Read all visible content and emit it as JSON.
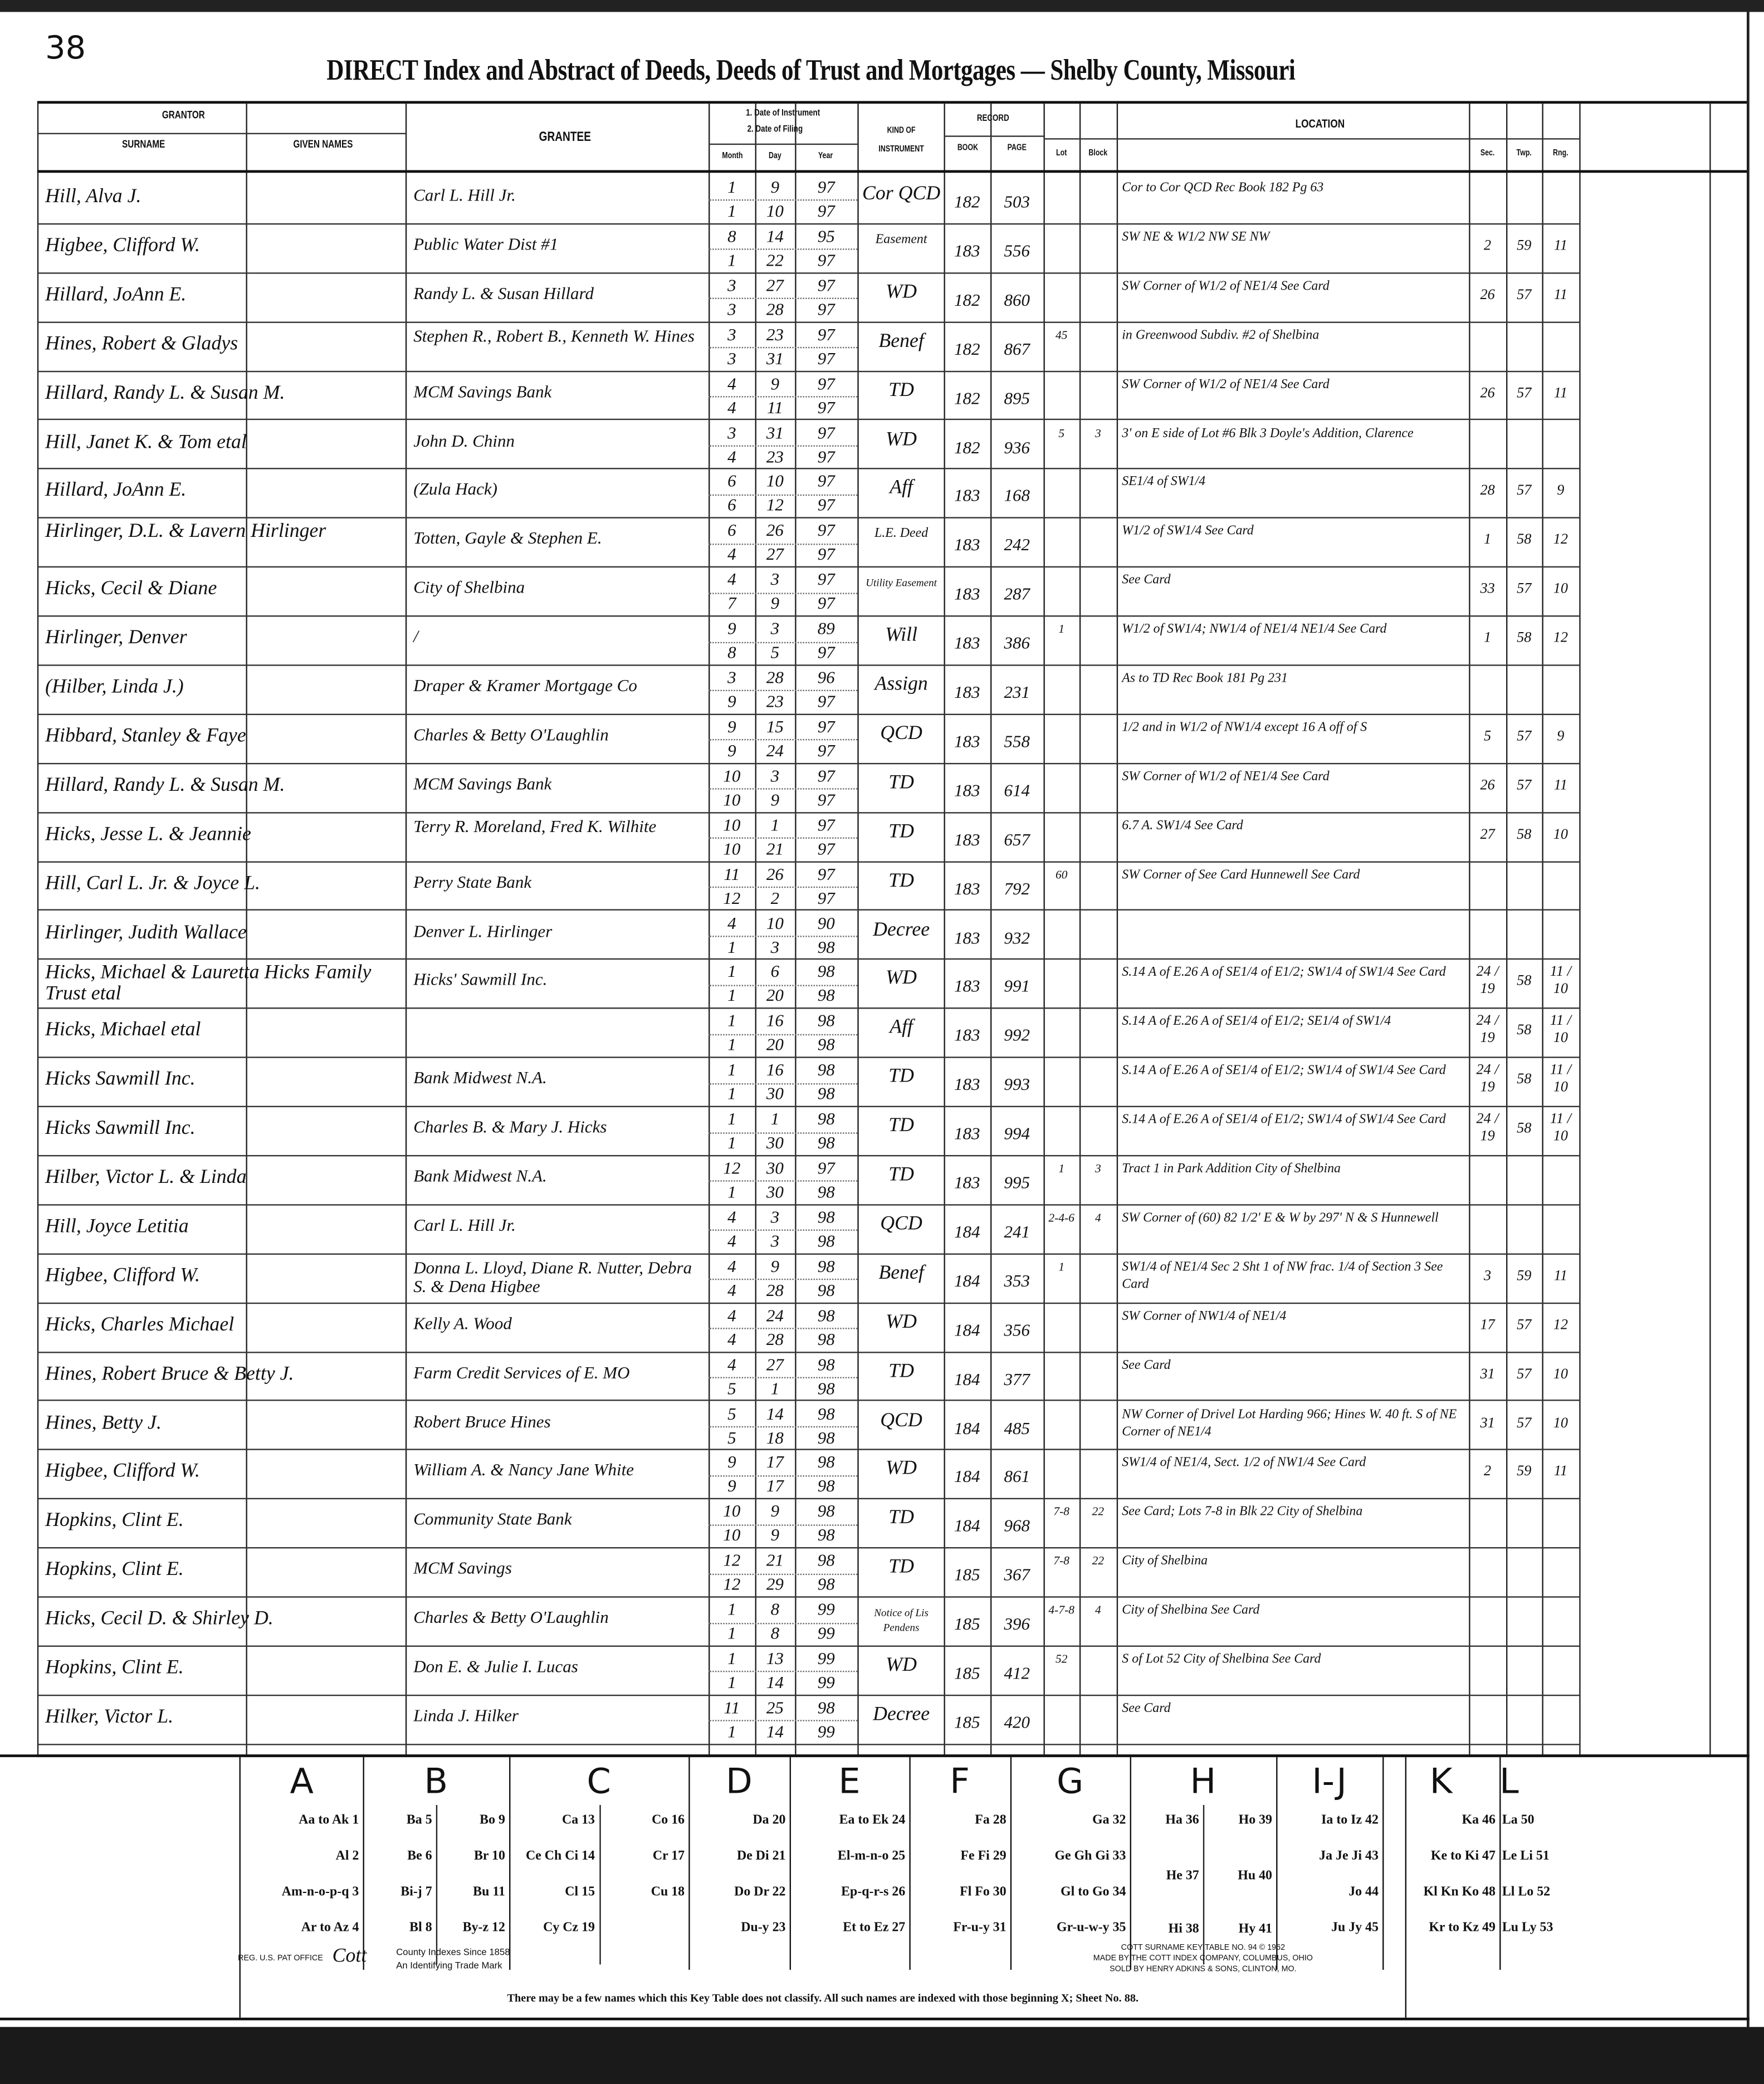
{
  "page_number": "38",
  "title": "DIRECT Index and Abstract of Deeds, Deeds of Trust and Mortgages — Shelby County, Missouri",
  "headers": {
    "grantor": "GRANTOR",
    "surname": "SURNAME",
    "given_names": "GIVEN NAMES",
    "grantee": "GRANTEE",
    "date_1": "1. Date of Instrument",
    "date_2": "2. Date of Filing",
    "month": "Month",
    "day": "Day",
    "year": "Year",
    "kind": "KIND OF INSTRUMENT",
    "record": "RECORD",
    "book": "BOOK",
    "page": "PAGE",
    "location": "LOCATION",
    "lot": "Lot",
    "block": "Block",
    "sec": "Sec.",
    "twp": "Twp.",
    "rng": "Rng."
  },
  "entries": [
    {
      "grantor": "Hill, Alva J.",
      "grantee": "Carl L. Hill Jr.",
      "d1": [
        "1",
        "9",
        "97"
      ],
      "d2": [
        "1",
        "10",
        "97"
      ],
      "kind": "Cor QCD",
      "book": "182",
      "page": "503",
      "lot": "",
      "block": "",
      "loc": "Cor to Cor QCD Rec Book 182 Pg 63",
      "sec": "",
      "twp": "",
      "rng": ""
    },
    {
      "grantor": "Higbee, Clifford W.",
      "grantee": "Public Water Dist #1",
      "d1": [
        "8",
        "14",
        "95"
      ],
      "d2": [
        "1",
        "22",
        "97"
      ],
      "kind": "Easement",
      "book": "183",
      "page": "556",
      "lot": "",
      "block": "",
      "loc": "SW NE & W1/2 NW SE NW",
      "sec": "2",
      "twp": "59",
      "rng": "11"
    },
    {
      "grantor": "Hillard, JoAnn E.",
      "grantee": "Randy L. & Susan Hillard",
      "d1": [
        "3",
        "27",
        "97"
      ],
      "d2": [
        "3",
        "28",
        "97"
      ],
      "kind": "WD",
      "book": "182",
      "page": "860",
      "lot": "",
      "block": "",
      "loc": "SW Corner of W1/2 of NE1/4 See Card",
      "sec": "26",
      "twp": "57",
      "rng": "11"
    },
    {
      "grantor": "Hines, Robert & Gladys",
      "grantee": "Stephen R., Robert B., Kenneth W. Hines",
      "d1": [
        "3",
        "23",
        "97"
      ],
      "d2": [
        "3",
        "31",
        "97"
      ],
      "kind": "Benef",
      "book": "182",
      "page": "867",
      "lot": "45",
      "block": "",
      "loc": "in Greenwood Subdiv. #2 of Shelbina",
      "sec": "",
      "twp": "",
      "rng": ""
    },
    {
      "grantor": "Hillard, Randy L. & Susan M.",
      "grantee": "MCM Savings Bank",
      "d1": [
        "4",
        "9",
        "97"
      ],
      "d2": [
        "4",
        "11",
        "97"
      ],
      "kind": "TD",
      "book": "182",
      "page": "895",
      "lot": "",
      "block": "",
      "loc": "SW Corner of W1/2 of NE1/4 See Card",
      "sec": "26",
      "twp": "57",
      "rng": "11"
    },
    {
      "grantor": "Hill, Janet K. & Tom etal",
      "grantee": "John D. Chinn",
      "d1": [
        "3",
        "31",
        "97"
      ],
      "d2": [
        "4",
        "23",
        "97"
      ],
      "kind": "WD",
      "book": "182",
      "page": "936",
      "lot": "5",
      "block": "3",
      "loc": "3' on E side of Lot #6 Blk 3 Doyle's Addition, Clarence",
      "sec": "",
      "twp": "",
      "rng": ""
    },
    {
      "grantor": "Hillard, JoAnn E.",
      "grantee": "(Zula Hack)",
      "d1": [
        "6",
        "10",
        "97"
      ],
      "d2": [
        "6",
        "12",
        "97"
      ],
      "kind": "Aff",
      "book": "183",
      "page": "168",
      "lot": "",
      "block": "",
      "loc": "SE1/4 of SW1/4",
      "sec": "28",
      "twp": "57",
      "rng": "9"
    },
    {
      "grantor": "Hirlinger, D.L. & Lavern Hirlinger",
      "grantee": "Totten, Gayle & Stephen E.",
      "d1": [
        "6",
        "26",
        "97"
      ],
      "d2": [
        "4",
        "27",
        "97"
      ],
      "kind": "L.E. Deed",
      "book": "183",
      "page": "242",
      "lot": "",
      "block": "",
      "loc": "W1/2 of SW1/4 See Card",
      "sec": "1",
      "twp": "58",
      "rng": "12"
    },
    {
      "grantor": "Hicks, Cecil & Diane",
      "grantee": "City of Shelbina",
      "d1": [
        "4",
        "3",
        "97"
      ],
      "d2": [
        "7",
        "9",
        "97"
      ],
      "kind": "Utility Easement",
      "book": "183",
      "page": "287",
      "lot": "",
      "block": "",
      "loc": "See Card",
      "sec": "33",
      "twp": "57",
      "rng": "10"
    },
    {
      "grantor": "Hirlinger, Denver",
      "grantee": "/",
      "d1": [
        "9",
        "3",
        "89"
      ],
      "d2": [
        "8",
        "5",
        "97"
      ],
      "kind": "Will",
      "book": "183",
      "page": "386",
      "lot": "1",
      "block": "",
      "loc": "W1/2 of SW1/4; NW1/4 of NE1/4 NE1/4 See Card",
      "sec": "1",
      "twp": "58",
      "rng": "12"
    },
    {
      "grantor": "(Hilber, Linda J.)",
      "grantee": "Draper & Kramer Mortgage Co",
      "d1": [
        "3",
        "28",
        "96"
      ],
      "d2": [
        "9",
        "23",
        "97"
      ],
      "kind": "Assign",
      "book": "183",
      "page": "231",
      "lot": "",
      "block": "",
      "loc": "As to TD Rec Book 181 Pg 231",
      "sec": "",
      "twp": "",
      "rng": ""
    },
    {
      "grantor": "Hibbard, Stanley & Faye",
      "grantee": "Charles & Betty O'Laughlin",
      "d1": [
        "9",
        "15",
        "97"
      ],
      "d2": [
        "9",
        "24",
        "97"
      ],
      "kind": "QCD",
      "book": "183",
      "page": "558",
      "lot": "",
      "block": "",
      "loc": "1/2 and in W1/2 of NW1/4 except 16 A off of S",
      "sec": "5",
      "twp": "57",
      "rng": "9"
    },
    {
      "grantor": "Hillard, Randy L. & Susan M.",
      "grantee": "MCM Savings Bank",
      "d1": [
        "10",
        "3",
        "97"
      ],
      "d2": [
        "10",
        "9",
        "97"
      ],
      "kind": "TD",
      "book": "183",
      "page": "614",
      "lot": "",
      "block": "",
      "loc": "SW Corner of W1/2 of NE1/4 See Card",
      "sec": "26",
      "twp": "57",
      "rng": "11"
    },
    {
      "grantor": "Hicks, Jesse L. & Jeannie",
      "grantee": "Terry R. Moreland, Fred K. Wilhite",
      "d1": [
        "10",
        "1",
        "97"
      ],
      "d2": [
        "10",
        "21",
        "97"
      ],
      "kind": "TD",
      "book": "183",
      "page": "657",
      "lot": "",
      "block": "",
      "loc": "6.7 A. SW1/4 See Card",
      "sec": "27",
      "twp": "58",
      "rng": "10"
    },
    {
      "grantor": "Hill, Carl L. Jr. & Joyce L.",
      "grantee": "Perry State Bank",
      "d1": [
        "11",
        "26",
        "97"
      ],
      "d2": [
        "12",
        "2",
        "97"
      ],
      "kind": "TD",
      "book": "183",
      "page": "792",
      "lot": "60",
      "block": "",
      "loc": "SW Corner of See Card Hunnewell See Card",
      "sec": "",
      "twp": "",
      "rng": ""
    },
    {
      "grantor": "Hirlinger, Judith Wallace",
      "grantee": "Denver L. Hirlinger",
      "d1": [
        "4",
        "10",
        "90"
      ],
      "d2": [
        "1",
        "3",
        "98"
      ],
      "kind": "Decree",
      "book": "183",
      "page": "932",
      "lot": "",
      "block": "",
      "loc": "",
      "sec": "",
      "twp": "",
      "rng": ""
    },
    {
      "grantor": "Hicks, Michael & Lauretta Hicks Family Trust etal",
      "grantee": "Hicks' Sawmill Inc.",
      "d1": [
        "1",
        "6",
        "98"
      ],
      "d2": [
        "1",
        "20",
        "98"
      ],
      "kind": "WD",
      "book": "183",
      "page": "991",
      "lot": "",
      "block": "",
      "loc": "S.14 A of E.26 A of SE1/4 of E1/2; SW1/4 of SW1/4 See Card",
      "sec": "24 / 19",
      "twp": "58",
      "rng": "11 / 10"
    },
    {
      "grantor": "Hicks, Michael etal",
      "grantee": "",
      "d1": [
        "1",
        "16",
        "98"
      ],
      "d2": [
        "1",
        "20",
        "98"
      ],
      "kind": "Aff",
      "book": "183",
      "page": "992",
      "lot": "",
      "block": "",
      "loc": "S.14 A of E.26 A of SE1/4 of E1/2; SE1/4 of SW1/4",
      "sec": "24 / 19",
      "twp": "58",
      "rng": "11 / 10"
    },
    {
      "grantor": "Hicks Sawmill Inc.",
      "grantee": "Bank Midwest N.A.",
      "d1": [
        "1",
        "16",
        "98"
      ],
      "d2": [
        "1",
        "30",
        "98"
      ],
      "kind": "TD",
      "book": "183",
      "page": "993",
      "lot": "",
      "block": "",
      "loc": "S.14 A of E.26 A of SE1/4 of E1/2; SW1/4 of SW1/4 See Card",
      "sec": "24 / 19",
      "twp": "58",
      "rng": "11 / 10"
    },
    {
      "grantor": "Hicks Sawmill Inc.",
      "grantee": "Charles B. & Mary J. Hicks",
      "d1": [
        "1",
        "1",
        "98"
      ],
      "d2": [
        "1",
        "30",
        "98"
      ],
      "kind": "TD",
      "book": "183",
      "page": "994",
      "lot": "",
      "block": "",
      "loc": "S.14 A of E.26 A of SE1/4 of E1/2; SW1/4 of SW1/4 See Card",
      "sec": "24 / 19",
      "twp": "58",
      "rng": "11 / 10"
    },
    {
      "grantor": "Hilber, Victor L. & Linda",
      "grantee": "Bank Midwest N.A.",
      "d1": [
        "12",
        "30",
        "97"
      ],
      "d2": [
        "1",
        "30",
        "98"
      ],
      "kind": "TD",
      "book": "183",
      "page": "995",
      "lot": "1",
      "block": "3",
      "loc": "Tract 1 in Park Addition City of Shelbina",
      "sec": "",
      "twp": "",
      "rng": ""
    },
    {
      "grantor": "Hill, Joyce Letitia",
      "grantee": "Carl L. Hill Jr.",
      "d1": [
        "4",
        "3",
        "98"
      ],
      "d2": [
        "4",
        "3",
        "98"
      ],
      "kind": "QCD",
      "book": "184",
      "page": "241",
      "lot": "2-4-6",
      "block": "4",
      "loc": "SW Corner of (60) 82 1/2' E & W by 297' N & S Hunnewell",
      "sec": "",
      "twp": "",
      "rng": ""
    },
    {
      "grantor": "Higbee, Clifford W.",
      "grantee": "Donna L. Lloyd, Diane R. Nutter, Debra S. & Dena Higbee",
      "d1": [
        "4",
        "9",
        "98"
      ],
      "d2": [
        "4",
        "28",
        "98"
      ],
      "kind": "Benef",
      "book": "184",
      "page": "353",
      "lot": "1",
      "block": "",
      "loc": "SW1/4 of NE1/4 Sec 2 Sht 1 of NW frac. 1/4 of Section 3 See Card",
      "sec": "3",
      "twp": "59",
      "rng": "11"
    },
    {
      "grantor": "Hicks, Charles Michael",
      "grantee": "Kelly A. Wood",
      "d1": [
        "4",
        "24",
        "98"
      ],
      "d2": [
        "4",
        "28",
        "98"
      ],
      "kind": "WD",
      "book": "184",
      "page": "356",
      "lot": "",
      "block": "",
      "loc": "SW Corner of NW1/4 of NE1/4",
      "sec": "17",
      "twp": "57",
      "rng": "12"
    },
    {
      "grantor": "Hines, Robert Bruce & Betty J.",
      "grantee": "Farm Credit Services of E. MO",
      "d1": [
        "4",
        "27",
        "98"
      ],
      "d2": [
        "5",
        "1",
        "98"
      ],
      "kind": "TD",
      "book": "184",
      "page": "377",
      "lot": "",
      "block": "",
      "loc": "See Card",
      "sec": "31",
      "twp": "57",
      "rng": "10"
    },
    {
      "grantor": "Hines, Betty J.",
      "grantee": "Robert Bruce Hines",
      "d1": [
        "5",
        "14",
        "98"
      ],
      "d2": [
        "5",
        "18",
        "98"
      ],
      "kind": "QCD",
      "book": "184",
      "page": "485",
      "lot": "",
      "block": "",
      "loc": "NW Corner of Drivel Lot Harding 966; Hines W. 40 ft. S of NE Corner of NE1/4",
      "sec": "31",
      "twp": "57",
      "rng": "10"
    },
    {
      "grantor": "Higbee, Clifford W.",
      "grantee": "William A. & Nancy Jane White",
      "d1": [
        "9",
        "17",
        "98"
      ],
      "d2": [
        "9",
        "17",
        "98"
      ],
      "kind": "WD",
      "book": "184",
      "page": "861",
      "lot": "",
      "block": "",
      "loc": "SW1/4 of NE1/4, Sect. 1/2 of NW1/4 See Card",
      "sec": "2",
      "twp": "59",
      "rng": "11"
    },
    {
      "grantor": "Hopkins, Clint E.",
      "grantee": "Community State Bank",
      "d1": [
        "10",
        "9",
        "98"
      ],
      "d2": [
        "10",
        "9",
        "98"
      ],
      "kind": "TD",
      "book": "184",
      "page": "968",
      "lot": "7-8",
      "block": "22",
      "loc": "See Card; Lots 7-8 in Blk 22 City of Shelbina",
      "sec": "",
      "twp": "",
      "rng": ""
    },
    {
      "grantor": "Hopkins, Clint E.",
      "grantee": "MCM Savings",
      "d1": [
        "12",
        "21",
        "98"
      ],
      "d2": [
        "12",
        "29",
        "98"
      ],
      "kind": "TD",
      "book": "185",
      "page": "367",
      "lot": "7-8",
      "block": "22",
      "loc": "City of Shelbina",
      "sec": "",
      "twp": "",
      "rng": ""
    },
    {
      "grantor": "Hicks, Cecil D. & Shirley D.",
      "grantee": "Charles & Betty O'Laughlin",
      "d1": [
        "1",
        "8",
        "99"
      ],
      "d2": [
        "1",
        "8",
        "99"
      ],
      "kind": "Notice of Lis Pendens",
      "book": "185",
      "page": "396",
      "lot": "4-7-8",
      "block": "4",
      "loc": "City of Shelbina See Card",
      "sec": "",
      "twp": "",
      "rng": ""
    },
    {
      "grantor": "Hopkins, Clint E.",
      "grantee": "Don E. & Julie I. Lucas",
      "d1": [
        "1",
        "13",
        "99"
      ],
      "d2": [
        "1",
        "14",
        "99"
      ],
      "kind": "WD",
      "book": "185",
      "page": "412",
      "lot": "52",
      "block": "",
      "loc": "S of Lot 52 City of Shelbina See Card",
      "sec": "",
      "twp": "",
      "rng": ""
    },
    {
      "grantor": "Hilker, Victor L.",
      "grantee": "Linda J. Hilker",
      "d1": [
        "11",
        "25",
        "98"
      ],
      "d2": [
        "1",
        "14",
        "99"
      ],
      "kind": "Decree",
      "book": "185",
      "page": "420",
      "lot": "",
      "block": "",
      "loc": "See Card",
      "sec": "",
      "twp": "",
      "rng": ""
    }
  ],
  "key_table": {
    "columns": [
      {
        "letter": "A",
        "subcols": [
          [
            "Aa to Ak 1",
            "Al 2",
            "Am-n-o-p-q 3",
            "Ar to Az 4"
          ]
        ]
      },
      {
        "letter": "B",
        "subcols": [
          [
            "Ba 5",
            "Be 6",
            "Bi-j 7",
            "Bl 8"
          ],
          [
            "Bo 9",
            "Br 10",
            "Bu 11",
            "By-z 12"
          ]
        ]
      },
      {
        "letter": "C",
        "subcols": [
          [
            "Ca 13",
            "Ce Ch Ci 14",
            "Cl 15",
            "Cy Cz 19"
          ],
          [
            "Co 16",
            "Cr 17",
            "Cu 18",
            ""
          ]
        ]
      },
      {
        "letter": "D",
        "subcols": [
          [
            "Da 20",
            "De Di 21",
            "Do Dr 22",
            "Du-y 23"
          ]
        ]
      },
      {
        "letter": "E",
        "subcols": [
          [
            "Ea to Ek 24",
            "El-m-n-o 25",
            "Ep-q-r-s 26",
            "Et to Ez 27"
          ]
        ]
      },
      {
        "letter": "F",
        "subcols": [
          [
            "Fa 28",
            "Fe Fi 29",
            "Fl Fo 30",
            "Fr-u-y 31"
          ]
        ]
      },
      {
        "letter": "G",
        "subcols": [
          [
            "Ga 32",
            "Ge Gh Gi 33",
            "Gl to Go 34",
            "Gr-u-w-y 35"
          ]
        ]
      },
      {
        "letter": "H",
        "subcols": [
          [
            "Ha 36",
            "He 37",
            "Hi 38"
          ],
          [
            "Ho 39",
            "Hu 40",
            "Hy 41"
          ]
        ]
      },
      {
        "letter": "I-J",
        "subcols": [
          [
            "Ia to Iz 42",
            "Ja Je Ji 43",
            "Jo 44",
            "Ju Jy 45"
          ]
        ]
      },
      {
        "letter": "K",
        "subcols": [
          [
            "Ka 46",
            "Ke to Ki 47",
            "Kl Kn Ko 48",
            "Kr to Kz 49"
          ]
        ]
      },
      {
        "letter": "L",
        "subcols": [
          [
            "La 50",
            "Le Li 51",
            "Ll Lo 52",
            "Lu Ly 53"
          ]
        ]
      }
    ],
    "note": "There may be a few names which this Key Table does not classify. All such names are indexed with those beginning X; Sheet No. 88."
  },
  "footer": {
    "left_trademark": "REG. U.S. PAT OFFICE",
    "left_text_1": "County Indexes Since 1858",
    "left_text_2": "An Identifying Trade Mark",
    "right_1": "COTT SURNAME KEY TABLE NO. 94 © 1962",
    "right_2": "MADE BY THE COTT INDEX COMPANY, COLUMBUS, OHIO",
    "right_3": "SOLD BY HENRY ADKINS & SONS, CLINTON, MO."
  }
}
